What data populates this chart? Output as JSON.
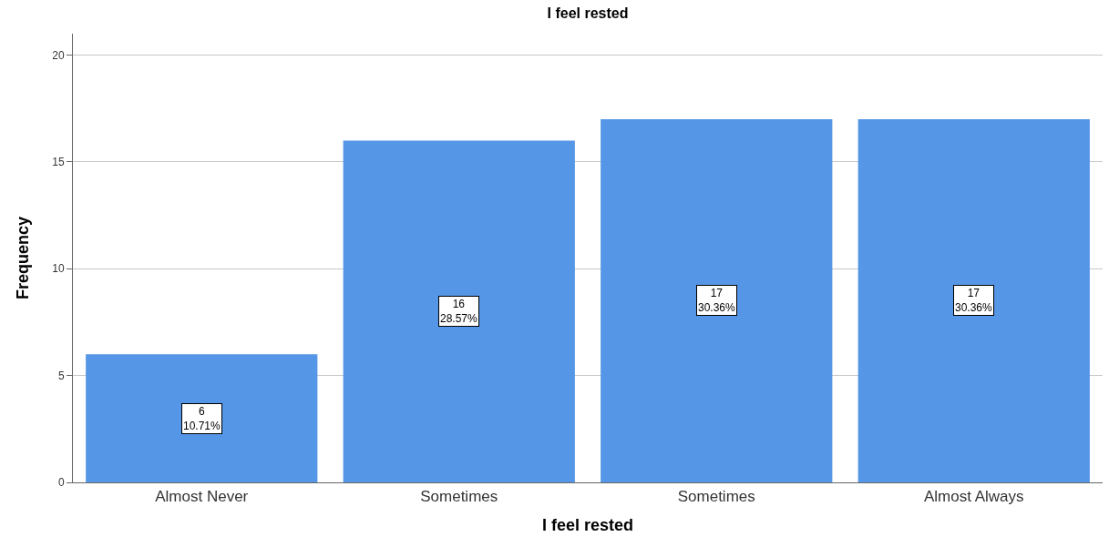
{
  "chart_data": {
    "type": "bar",
    "title": "I feel rested",
    "xlabel": "I feel rested",
    "ylabel": "Frequency",
    "categories": [
      "Almost Never",
      "Sometimes",
      "Sometimes",
      "Almost Always"
    ],
    "values": [
      6,
      16,
      17,
      17
    ],
    "value_labels": [
      "6\n10.71%",
      "16\n28.57%",
      "17\n30.36%",
      "17\n30.36%"
    ],
    "color": "#5596e6",
    "ylim": [
      0,
      21
    ],
    "yticks": [
      0,
      5,
      10,
      15,
      20
    ],
    "grid": "y",
    "legend": false
  }
}
